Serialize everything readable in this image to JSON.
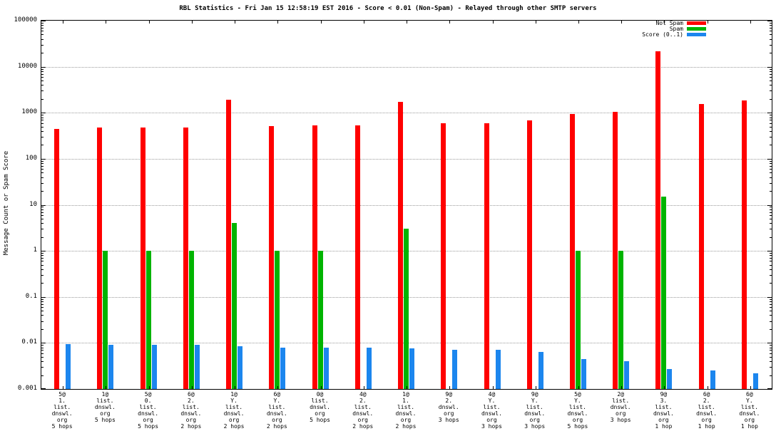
{
  "chart_data": {
    "type": "bar",
    "title": "RBL Statistics - Fri Jan 15 12:58:19 EST 2016 - Score < 0.01 (Non-Spam) - Relayed through other SMTP servers",
    "ylabel": "Message Count or Spam Score",
    "y_scale": "log",
    "ylim": [
      0.001,
      100000
    ],
    "y_ticks": [
      "100000",
      "10000",
      "1000",
      "100",
      "10",
      "1",
      "0.1",
      "0.01",
      "0.001"
    ],
    "grid": "horizontal-dotted",
    "legend_position": "top-right",
    "legend": [
      {
        "label": "Not Spam",
        "color": "#ff0000"
      },
      {
        "label": "Spam",
        "color": "#00b400"
      },
      {
        "label": "Score (0..1)",
        "color": "#1c86ee"
      }
    ],
    "categories": [
      [
        "5@",
        "1.",
        "list.",
        "dnswl.",
        "org",
        "5 hops"
      ],
      [
        "1@",
        "list.",
        "dnswl.",
        "org",
        "5 hops"
      ],
      [
        "5@",
        "0.",
        "list.",
        "dnswl.",
        "org",
        "5 hops"
      ],
      [
        "6@",
        "2.",
        "list.",
        "dnswl.",
        "org",
        "2 hops"
      ],
      [
        "1@",
        "Y.",
        "list.",
        "dnswl.",
        "org",
        "2 hops"
      ],
      [
        "6@",
        "Y.",
        "list.",
        "dnswl.",
        "org",
        "2 hops"
      ],
      [
        "0@",
        "list.",
        "dnswl.",
        "org",
        "5 hops"
      ],
      [
        "4@",
        "2.",
        "list.",
        "dnswl.",
        "org",
        "2 hops"
      ],
      [
        "1@",
        "1.",
        "list.",
        "dnswl.",
        "org",
        "2 hops"
      ],
      [
        "9@",
        "2.",
        "dnswl.",
        "org",
        "3 hops"
      ],
      [
        "4@",
        "Y.",
        "list.",
        "dnswl.",
        "org",
        "3 hops"
      ],
      [
        "9@",
        "Y.",
        "list.",
        "dnswl.",
        "org",
        "3 hops"
      ],
      [
        "5@",
        "Y.",
        "list.",
        "dnswl.",
        "org",
        "5 hops"
      ],
      [
        "2@",
        "list.",
        "dnswl.",
        "org",
        "3 hops"
      ],
      [
        "9@",
        "3.",
        "list.",
        "dnswl.",
        "org",
        "1 hop"
      ],
      [
        "6@",
        "2.",
        "list.",
        "dnswl.",
        "org",
        "1 hop"
      ],
      [
        "6@",
        "Y.",
        "list.",
        "dnswl.",
        "org",
        "1 hop"
      ]
    ],
    "series": [
      {
        "name": "Not Spam",
        "color": "#ff0000",
        "values": [
          450,
          480,
          480,
          480,
          1900,
          520,
          540,
          540,
          1750,
          600,
          600,
          680,
          950,
          1050,
          22000,
          1550,
          1850
        ]
      },
      {
        "name": "Spam",
        "color": "#00b400",
        "values": [
          null,
          1,
          1,
          1,
          4,
          1,
          1,
          null,
          3,
          null,
          null,
          null,
          1,
          1,
          15,
          null,
          null
        ]
      },
      {
        "name": "Score (0..1)",
        "color": "#1c86ee",
        "values": [
          0.0095,
          0.009,
          0.009,
          0.009,
          0.0085,
          0.008,
          0.0078,
          0.008,
          0.0075,
          0.0072,
          0.007,
          0.0063,
          0.0045,
          0.004,
          0.0027,
          0.0025,
          0.0022
        ]
      }
    ]
  }
}
